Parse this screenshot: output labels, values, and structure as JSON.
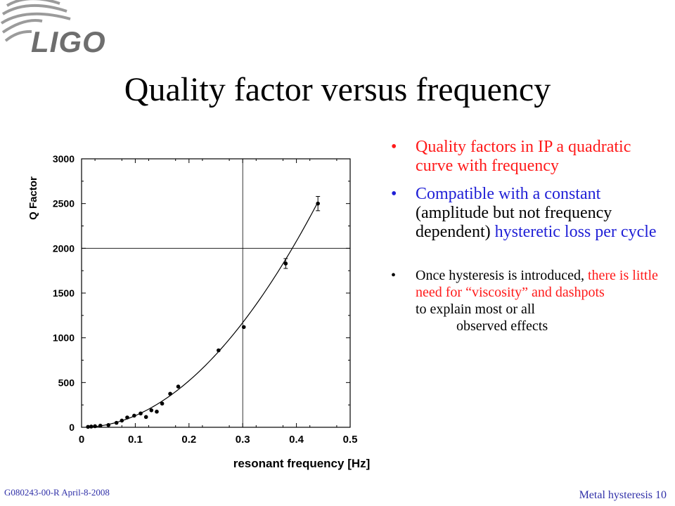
{
  "logo": {
    "text": "LIGO"
  },
  "slide": {
    "title": "Quality factor versus frequency"
  },
  "bullets": {
    "b1": {
      "text": "Quality factors in IP a quadratic curve with frequency"
    },
    "b2": {
      "part1": "Compatible with a constant",
      "part2": " (amplitude but not frequency dependent) ",
      "part3": "hysteretic  loss per cycle"
    },
    "b3": {
      "part1": "Once hysteresis is introduced, ",
      "part2": "there is little need for “viscosity” and dashpots",
      "part3": "to explain most or all",
      "part4": "observed effects"
    }
  },
  "footer": {
    "left": "G080243-00-R  April-8-2008",
    "right": "Metal hysteresis 10"
  },
  "colors": {
    "red": "#ff1a1a",
    "blue": "#1f1fd6",
    "footer": "#3030a8"
  },
  "chart_data": {
    "type": "scatter",
    "xlabel": "resonant frequency [Hz]",
    "ylabel": "Q Factor",
    "xlim": [
      0,
      0.5
    ],
    "ylim": [
      0,
      3000
    ],
    "xticks": [
      0,
      0.1,
      0.2,
      0.3,
      0.4,
      0.5
    ],
    "xtick_labels": [
      "0",
      "0.1",
      "0.2",
      "0.3",
      "0.4",
      "0.5"
    ],
    "yticks": [
      0,
      500,
      1000,
      1500,
      2000,
      2500,
      3000
    ],
    "ytick_labels": [
      "0",
      "500",
      "1000",
      "1500",
      "2000",
      "2500",
      "3000"
    ],
    "reference_lines": {
      "x": 0.3,
      "y": 2000
    },
    "points": [
      {
        "x": 0.012,
        "y": 5
      },
      {
        "x": 0.018,
        "y": 8
      },
      {
        "x": 0.025,
        "y": 12
      },
      {
        "x": 0.035,
        "y": 18
      },
      {
        "x": 0.05,
        "y": 25
      },
      {
        "x": 0.065,
        "y": 50
      },
      {
        "x": 0.075,
        "y": 75
      },
      {
        "x": 0.085,
        "y": 110
      },
      {
        "x": 0.098,
        "y": 130
      },
      {
        "x": 0.11,
        "y": 155
      },
      {
        "x": 0.12,
        "y": 115
      },
      {
        "x": 0.13,
        "y": 190
      },
      {
        "x": 0.14,
        "y": 175
      },
      {
        "x": 0.15,
        "y": 265
      },
      {
        "x": 0.165,
        "y": 375
      },
      {
        "x": 0.18,
        "y": 455
      },
      {
        "x": 0.255,
        "y": 860
      },
      {
        "x": 0.302,
        "y": 1120
      },
      {
        "x": 0.38,
        "y": 1830,
        "err": 55
      },
      {
        "x": 0.44,
        "y": 2500,
        "err": 80
      }
    ],
    "fit": {
      "type": "quadratic",
      "a": 13000,
      "x_range": [
        0.01,
        0.44
      ]
    }
  }
}
